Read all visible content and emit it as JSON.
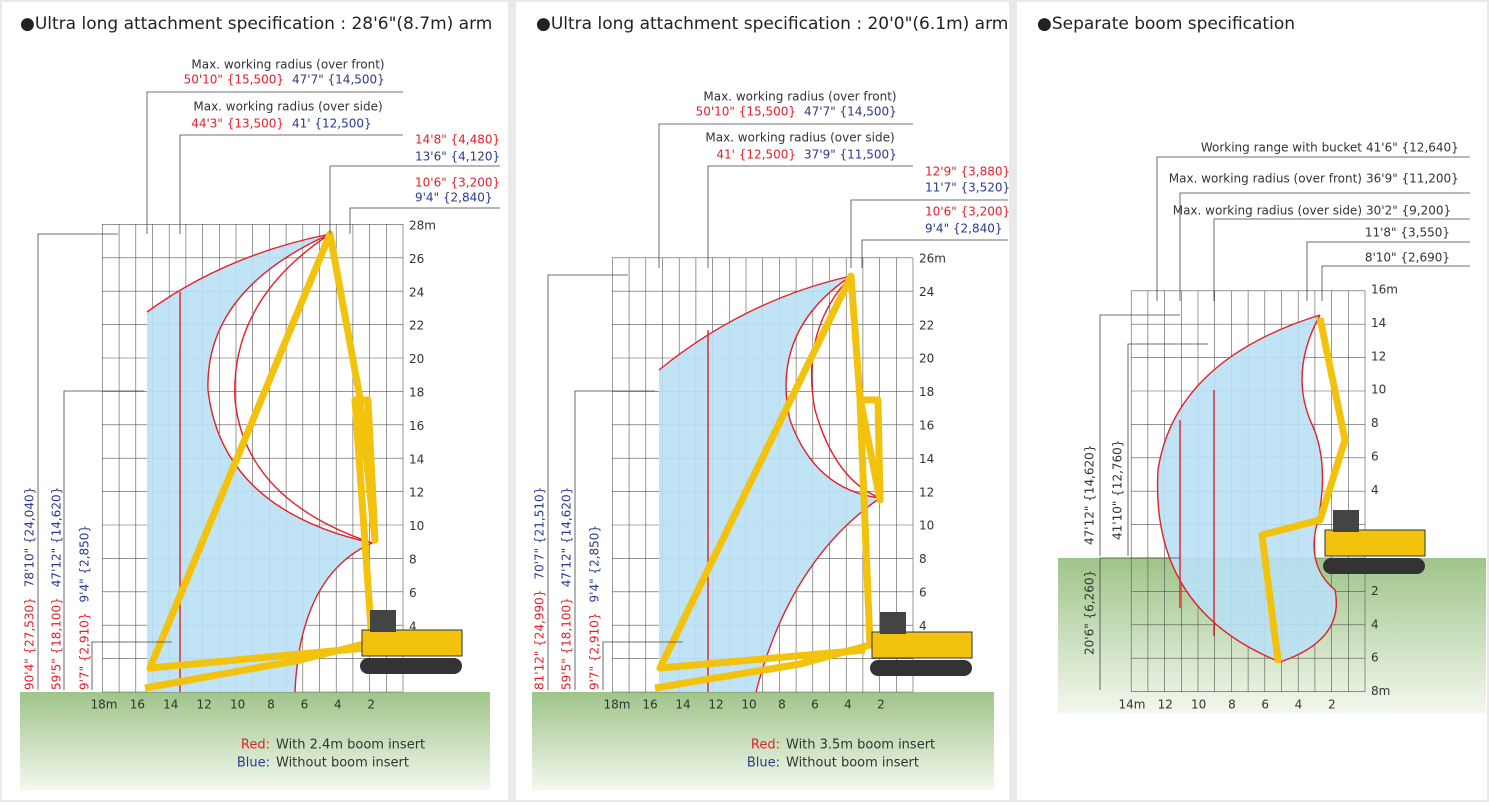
{
  "panels": [
    {
      "title": "●Ultra long attachment specification : 28'6\"(8.7m) arm",
      "dimensions": [
        {
          "label": "Max. working radius (over front)",
          "red": "50'10\" {15,500}",
          "blue": "47'7\" {14,500}"
        },
        {
          "label": "Max. working radius (over side)",
          "red": "44'3\" {13,500}",
          "blue": "41' {12,500}"
        },
        {
          "red": "14'8\" {4,480}",
          "blue": "13'6\" {4,120}"
        },
        {
          "red": "10'6\" {3,200}",
          "blue": "9'4\" {2,840}"
        }
      ],
      "heights": [
        {
          "red": "90'4\" {27,530}",
          "blue": "78'10\" {24,040}"
        },
        {
          "red": "59'5\" {18,100}",
          "blue": "47'12\" {14,620}"
        },
        {
          "red": "9'7\" {2,910}",
          "blue": "9'4\" {2,850}"
        }
      ],
      "yticks": [
        "28m",
        "26",
        "24",
        "22",
        "20",
        "18",
        "16",
        "14",
        "12",
        "10",
        "8",
        "6",
        "4"
      ],
      "xticks": [
        "18m",
        "16",
        "14",
        "12",
        "10",
        "8",
        "6",
        "4",
        "2"
      ],
      "legend": [
        {
          "key": "Red:",
          "text": "With 2.4m boom insert"
        },
        {
          "key": "Blue:",
          "text": "Without boom insert"
        }
      ]
    },
    {
      "title": "●Ultra long attachment specification : 20'0\"(6.1m) arm",
      "dimensions": [
        {
          "label": "Max. working radius (over front)",
          "red": "50'10\" {15,500}",
          "blue": "47'7\" {14,500}"
        },
        {
          "label": "Max. working radius (over side)",
          "red": "41' {12,500}",
          "blue": "37'9\" {11,500}"
        },
        {
          "red": "12'9\" {3,880}",
          "blue": "11'7\" {3,520}"
        },
        {
          "red": "10'6\" {3,200}",
          "blue": "9'4\" {2,840}"
        }
      ],
      "heights": [
        {
          "red": "81'12\" {24,990}",
          "blue": "70'7\" {21,510}"
        },
        {
          "red": "59'5\" {18,100}",
          "blue": "47'12\" {14,620}"
        },
        {
          "red": "9'7\" {2,910}",
          "blue": "9'4\" {2,850}"
        }
      ],
      "yticks": [
        "26m",
        "24",
        "22",
        "20",
        "18",
        "16",
        "14",
        "12",
        "10",
        "8",
        "6",
        "4"
      ],
      "xticks": [
        "18m",
        "16",
        "14",
        "12",
        "10",
        "8",
        "6",
        "4",
        "2"
      ],
      "legend": [
        {
          "key": "Red:",
          "text": "With 3.5m boom insert"
        },
        {
          "key": "Blue:",
          "text": "Without boom insert"
        }
      ]
    },
    {
      "title": "●Separate boom specification",
      "dimensions": [
        {
          "label": "Working range with bucket",
          "value": "41'6\" {12,640}"
        },
        {
          "label": "Max. working radius (over front)",
          "value": "36'9\" {11,200}"
        },
        {
          "label": "Max. working radius (over side)",
          "value": "30'2\" {9,200}"
        },
        {
          "value": "11'8\" {3,550}"
        },
        {
          "value": "8'10\" {2,690}"
        }
      ],
      "heights": [
        {
          "value": "47'12\" {14,620}"
        },
        {
          "value": "41'10\" {12,760}"
        },
        {
          "value": "20'6\" {6,260}"
        }
      ],
      "yticks": [
        "16m",
        "14",
        "12",
        "10",
        "8",
        "6",
        "4",
        "2",
        "4",
        "6",
        "8m"
      ],
      "xticks": [
        "14m",
        "12",
        "10",
        "8",
        "6",
        "4",
        "2"
      ]
    }
  ]
}
